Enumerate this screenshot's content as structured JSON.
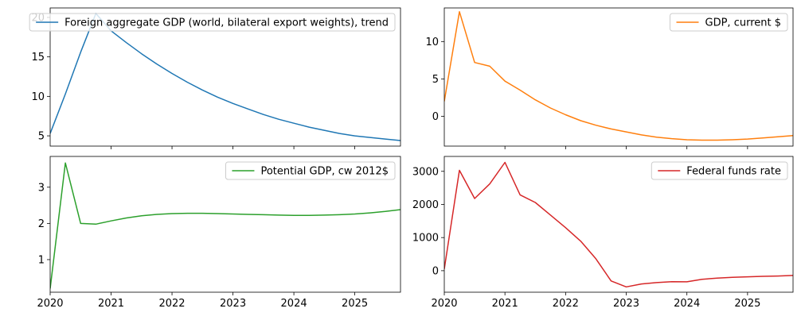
{
  "chart_data": [
    {
      "type": "line",
      "legend": "top-right",
      "grid": false,
      "xlim": [
        2020.0,
        2025.75
      ],
      "ylim": [
        3.7,
        21.2
      ],
      "xticks": [
        2021,
        2022,
        2023,
        2024,
        2025
      ],
      "xtick_labels": [],
      "yticks": [
        5,
        10,
        15,
        20
      ],
      "ytick_labels": [
        "5",
        "10",
        "15",
        "20"
      ],
      "series": [
        {
          "name": "Foreign aggregate GDP (world, bilateral export weights), trend",
          "color": "#1f77b4",
          "x": [
            2020.0,
            2020.25,
            2020.5,
            2020.75,
            2021.0,
            2021.25,
            2021.5,
            2021.75,
            2022.0,
            2022.25,
            2022.5,
            2022.75,
            2023.0,
            2023.25,
            2023.5,
            2023.75,
            2024.0,
            2024.25,
            2024.5,
            2024.75,
            2025.0,
            2025.25,
            2025.5,
            2025.75
          ],
          "y": [
            5.3,
            10.3,
            15.6,
            20.5,
            18.3,
            16.8,
            15.4,
            14.1,
            12.9,
            11.8,
            10.8,
            9.9,
            9.1,
            8.4,
            7.7,
            7.1,
            6.6,
            6.1,
            5.7,
            5.3,
            5.0,
            4.8,
            4.6,
            4.4
          ]
        }
      ]
    },
    {
      "type": "line",
      "legend": "top-right",
      "grid": false,
      "xlim": [
        2020.0,
        2025.75
      ],
      "ylim": [
        -4.0,
        14.5
      ],
      "xticks": [
        2021,
        2022,
        2023,
        2024,
        2025
      ],
      "xtick_labels": [],
      "yticks": [
        0,
        5,
        10
      ],
      "ytick_labels": [
        "0",
        "5",
        "10"
      ],
      "series": [
        {
          "name": "GDP, current $",
          "color": "#ff7f0e",
          "x": [
            2020.0,
            2020.25,
            2020.5,
            2020.75,
            2021.0,
            2021.25,
            2021.5,
            2021.75,
            2022.0,
            2022.25,
            2022.5,
            2022.75,
            2023.0,
            2023.25,
            2023.5,
            2023.75,
            2024.0,
            2024.25,
            2024.5,
            2024.75,
            2025.0,
            2025.25,
            2025.5,
            2025.75
          ],
          "y": [
            2.0,
            14.0,
            7.2,
            6.7,
            4.7,
            3.5,
            2.2,
            1.1,
            0.2,
            -0.6,
            -1.2,
            -1.7,
            -2.1,
            -2.5,
            -2.8,
            -3.0,
            -3.15,
            -3.2,
            -3.2,
            -3.15,
            -3.05,
            -2.9,
            -2.75,
            -2.6
          ]
        }
      ]
    },
    {
      "type": "line",
      "legend": "top-right",
      "grid": false,
      "xlim": [
        2020.0,
        2025.75
      ],
      "ylim": [
        0.1,
        3.85
      ],
      "xticks": [
        2020,
        2021,
        2022,
        2023,
        2024,
        2025
      ],
      "xtick_labels": [
        "2020",
        "2021",
        "2022",
        "2023",
        "2024",
        "2025"
      ],
      "yticks": [
        1,
        2,
        3
      ],
      "ytick_labels": [
        "1",
        "2",
        "3"
      ],
      "series": [
        {
          "name": "Potential GDP, cw 2012$",
          "color": "#2ca02c",
          "x": [
            2020.0,
            2020.25,
            2020.5,
            2020.75,
            2021.0,
            2021.25,
            2021.5,
            2021.75,
            2022.0,
            2022.25,
            2022.5,
            2022.75,
            2023.0,
            2023.25,
            2023.5,
            2023.75,
            2024.0,
            2024.25,
            2024.5,
            2024.75,
            2025.0,
            2025.25,
            2025.5,
            2025.75
          ],
          "y": [
            0.2,
            3.67,
            2.0,
            1.98,
            2.07,
            2.15,
            2.21,
            2.25,
            2.27,
            2.28,
            2.28,
            2.27,
            2.26,
            2.25,
            2.24,
            2.23,
            2.22,
            2.22,
            2.23,
            2.24,
            2.26,
            2.29,
            2.33,
            2.38
          ]
        }
      ]
    },
    {
      "type": "line",
      "legend": "top-right",
      "grid": false,
      "xlim": [
        2020.0,
        2025.75
      ],
      "ylim": [
        -650,
        3450
      ],
      "xticks": [
        2020,
        2021,
        2022,
        2023,
        2024,
        2025
      ],
      "xtick_labels": [
        "2020",
        "2021",
        "2022",
        "2023",
        "2024",
        "2025"
      ],
      "yticks": [
        0,
        1000,
        2000,
        3000
      ],
      "ytick_labels": [
        "0",
        "1000",
        "2000",
        "3000"
      ],
      "series": [
        {
          "name": "Federal funds rate",
          "color": "#d62728",
          "x": [
            2020.0,
            2020.25,
            2020.5,
            2020.75,
            2021.0,
            2021.25,
            2021.5,
            2021.75,
            2022.0,
            2022.25,
            2022.5,
            2022.75,
            2023.0,
            2023.25,
            2023.5,
            2023.75,
            2024.0,
            2024.25,
            2024.5,
            2024.75,
            2025.0,
            2025.25,
            2025.5,
            2025.75
          ],
          "y": [
            50,
            3030,
            2180,
            2620,
            3270,
            2290,
            2060,
            1680,
            1300,
            890,
            360,
            -310,
            -490,
            -400,
            -360,
            -330,
            -335,
            -260,
            -225,
            -200,
            -185,
            -170,
            -160,
            -145
          ]
        }
      ]
    }
  ]
}
